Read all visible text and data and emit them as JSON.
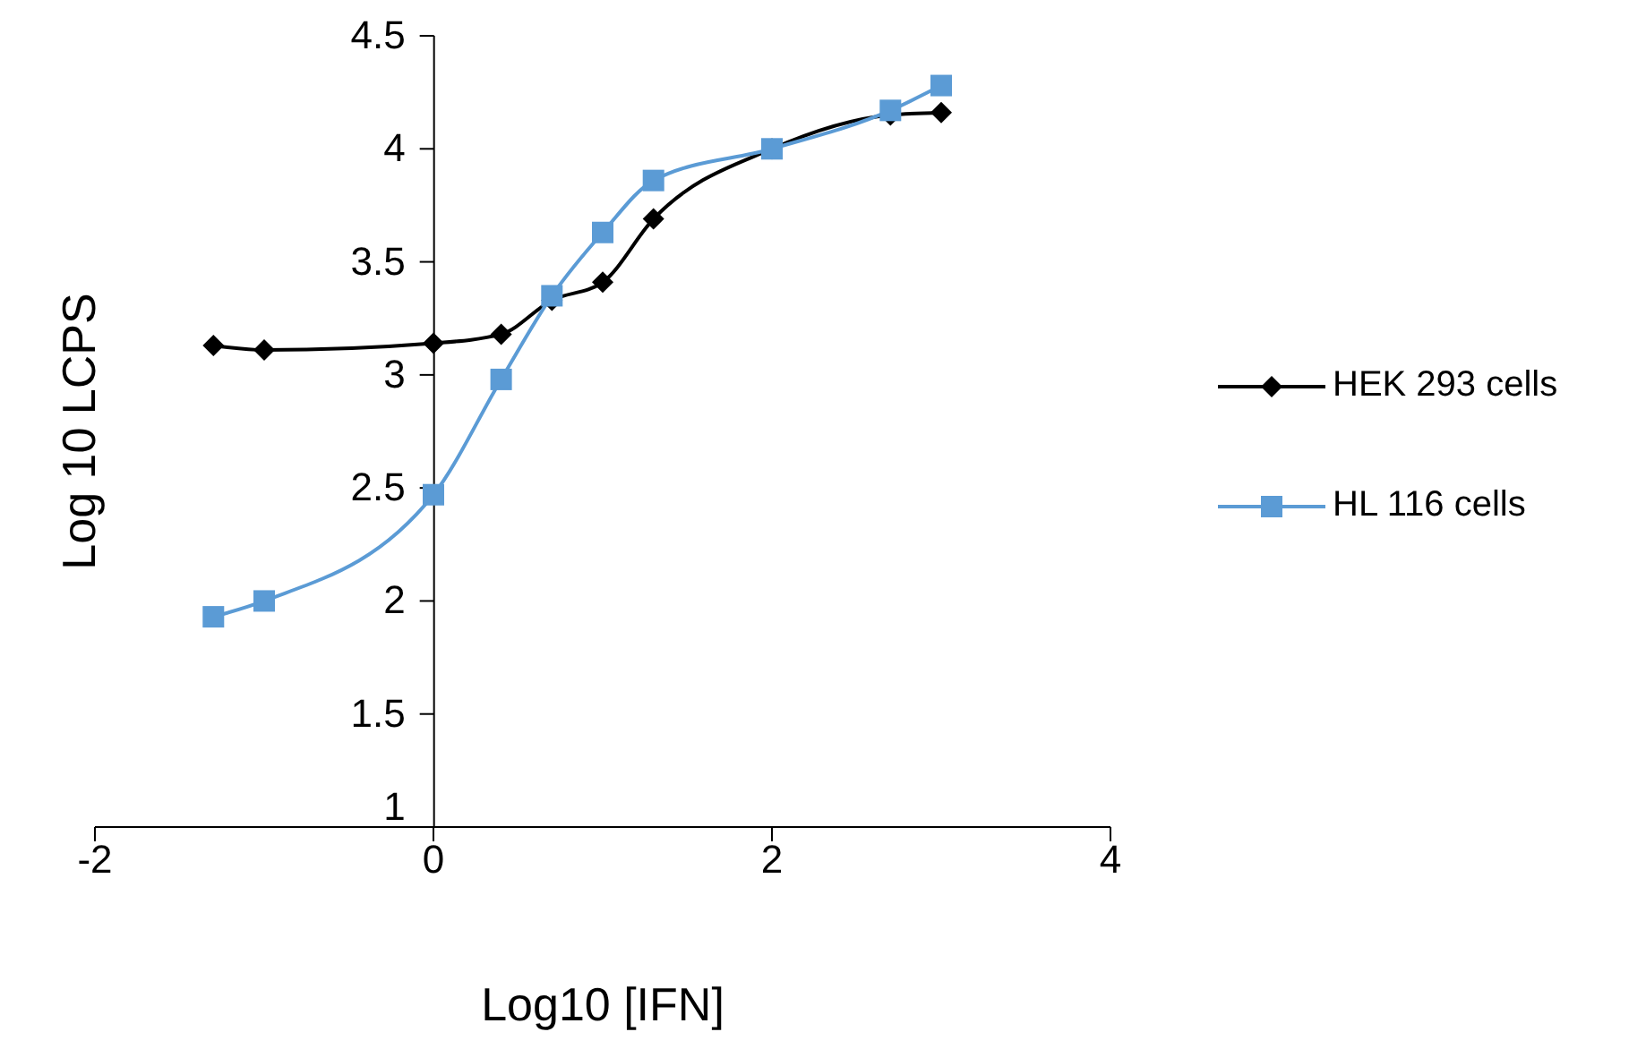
{
  "chart_data": {
    "type": "line",
    "xlabel": "Log10 [IFN]",
    "ylabel": "Log 10 LCPS",
    "x": [
      -1.3,
      -1,
      0,
      0.4,
      0.7,
      1,
      1.3,
      2,
      2.7,
      3
    ],
    "series": [
      {
        "name": "HEK 293 cells",
        "color": "#000000",
        "marker": "diamond",
        "values": [
          3.13,
          3.11,
          3.14,
          3.18,
          3.33,
          3.41,
          3.69,
          4.0,
          4.15,
          4.16
        ]
      },
      {
        "name": "HL 116 cells",
        "color": "#5b9bd5",
        "marker": "square",
        "values": [
          1.93,
          2.0,
          2.47,
          2.98,
          3.35,
          3.63,
          3.86,
          4.0,
          4.17,
          4.28
        ]
      }
    ],
    "xlim": [
      -2,
      4
    ],
    "xticks": [
      -2,
      0,
      2,
      4
    ],
    "ylim": [
      1,
      4.5
    ],
    "yticks": [
      1,
      1.5,
      2,
      2.5,
      3,
      3.5,
      4,
      4.5
    ],
    "legend": "right",
    "line_style": "solid"
  }
}
